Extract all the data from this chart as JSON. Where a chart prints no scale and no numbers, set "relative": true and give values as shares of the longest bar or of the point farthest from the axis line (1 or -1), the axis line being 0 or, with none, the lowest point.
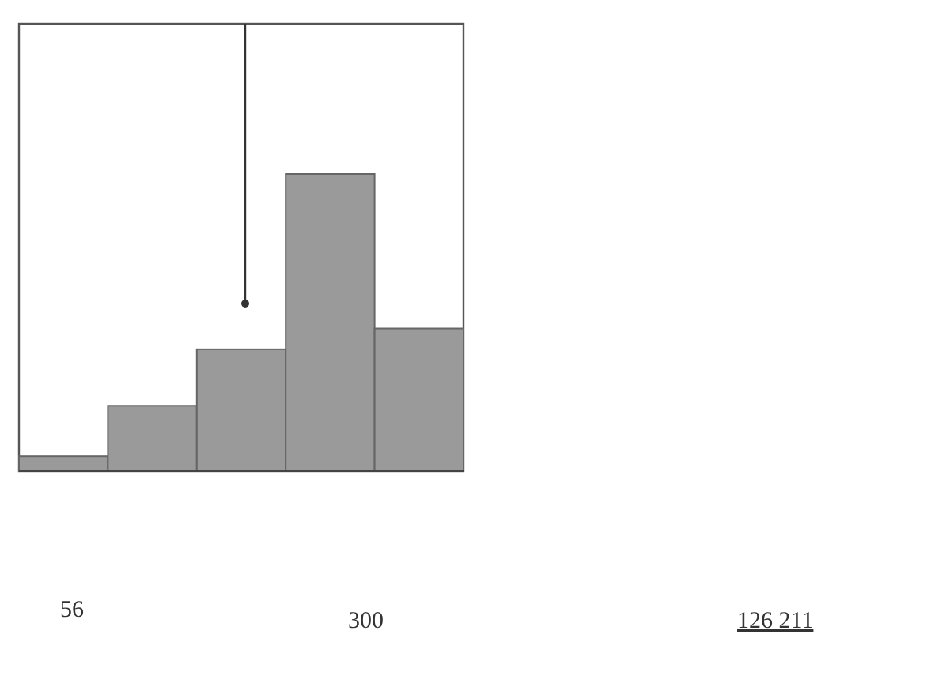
{
  "chart_data": {
    "type": "bar",
    "relative": true,
    "categories": [
      null,
      null,
      null,
      null,
      null
    ],
    "values": [
      0.05,
      0.22,
      0.41,
      1,
      0.48
    ],
    "color": "#9a9a9a",
    "annotations": [
      "56",
      "300",
      "126 211"
    ]
  }
}
